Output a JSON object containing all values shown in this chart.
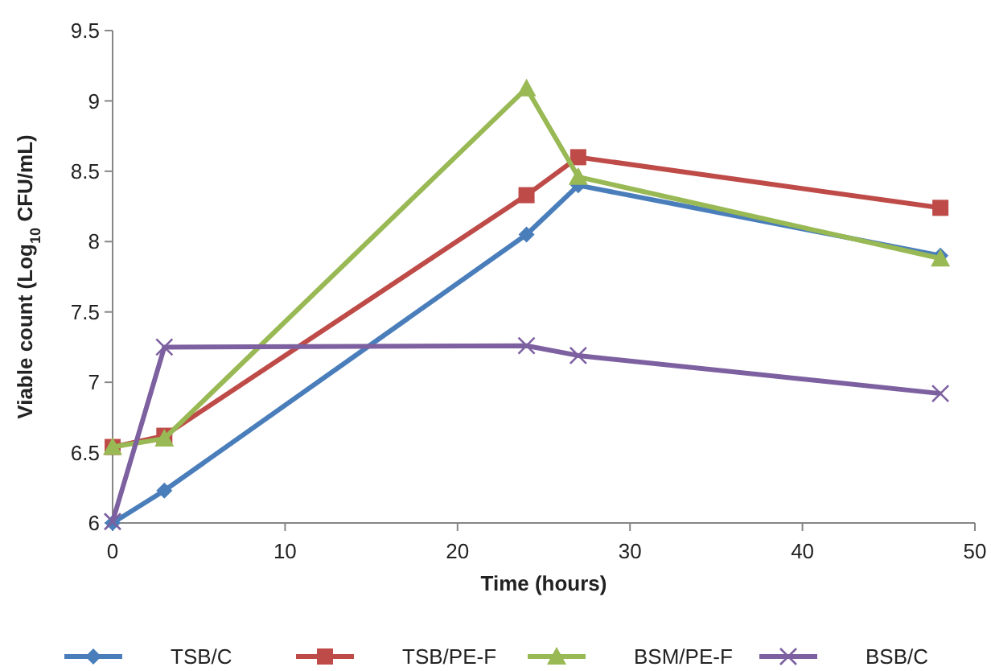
{
  "chart_data": {
    "type": "line",
    "xlabel": "Time (hours)",
    "ylabel": "Viable count (Log$_{10}$ CFU/mL)",
    "x": [
      0,
      3,
      24,
      27,
      48
    ],
    "xlim": [
      0,
      50
    ],
    "xticks": [
      0,
      10,
      20,
      30,
      40,
      50
    ],
    "ylim": [
      6,
      9.5
    ],
    "yticks": [
      6,
      6.5,
      7,
      7.5,
      8,
      8.5,
      9,
      9.5
    ],
    "grid": false,
    "legend": "bottom",
    "line_style": "solid",
    "series": [
      {
        "name": "TSB/C",
        "color": "#4a7ebb",
        "marker": "diamond",
        "values": [
          6.0,
          6.23,
          8.05,
          8.4,
          7.9
        ]
      },
      {
        "name": "TSB/PE-F",
        "color": "#be4b48",
        "marker": "square",
        "values": [
          6.54,
          6.62,
          8.33,
          8.6,
          8.24
        ]
      },
      {
        "name": "BSM/PE-F",
        "color": "#98b954",
        "marker": "triangle",
        "values": [
          6.54,
          6.6,
          9.09,
          8.46,
          7.88
        ]
      },
      {
        "name": "BSB/C",
        "color": "#7d60a0",
        "marker": "cross",
        "values": [
          6.01,
          7.25,
          7.26,
          7.19,
          6.92
        ]
      }
    ]
  }
}
